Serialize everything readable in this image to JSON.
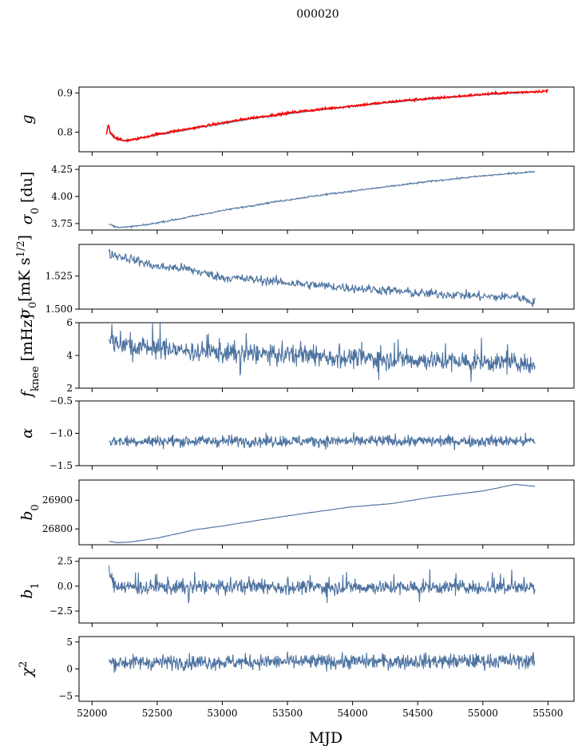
{
  "figure": {
    "title": "000020",
    "xlabel": "MJD"
  },
  "colors": {
    "series": "#4c72a0",
    "overlay": "#ff0000",
    "axes": "#000000"
  },
  "chart_data": {
    "type": "line",
    "shared_x": {
      "range": [
        51900,
        55700
      ],
      "ticks": [
        52000,
        52500,
        53000,
        53500,
        54000,
        54500,
        55000,
        55500
      ]
    },
    "data_x_range": [
      52130,
      55400
    ],
    "panels": [
      {
        "id": "g",
        "ylabel_main": "g",
        "ylabel_sub": "",
        "ylim": [
          0.75,
          0.915
        ],
        "yticks": [
          0.8,
          0.9
        ],
        "ytick_labels": [
          "0.8",
          "0.9"
        ],
        "series": [
          {
            "color": "#4c72a0",
            "kind": "trend",
            "noise": 0.0008,
            "points": [
              [
                52130,
                0.8
              ],
              [
                52170,
                0.785
              ],
              [
                52230,
                0.778
              ],
              [
                52300,
                0.78
              ],
              [
                52500,
                0.793
              ],
              [
                52800,
                0.81
              ],
              [
                53200,
                0.833
              ],
              [
                53600,
                0.851
              ],
              [
                54000,
                0.866
              ],
              [
                54400,
                0.879
              ],
              [
                54800,
                0.89
              ],
              [
                55100,
                0.897
              ],
              [
                55400,
                0.902
              ]
            ]
          },
          {
            "color": "#ff0000",
            "kind": "trend",
            "noise": 0.0015,
            "points": [
              [
                52110,
                0.795
              ],
              [
                52125,
                0.82
              ],
              [
                52140,
                0.8
              ],
              [
                52180,
                0.786
              ],
              [
                52240,
                0.778
              ],
              [
                52320,
                0.781
              ],
              [
                52500,
                0.795
              ],
              [
                52800,
                0.812
              ],
              [
                53200,
                0.835
              ],
              [
                53600,
                0.853
              ],
              [
                54000,
                0.867
              ],
              [
                54400,
                0.881
              ],
              [
                54800,
                0.891
              ],
              [
                55100,
                0.899
              ],
              [
                55500,
                0.905
              ]
            ]
          }
        ]
      },
      {
        "id": "sigma0_du",
        "ylabel_main": "σ",
        "ylabel_sub": "0",
        "ylabel_unit": " [du]",
        "ylim": [
          3.69,
          4.28
        ],
        "yticks": [
          3.75,
          4.0,
          4.25
        ],
        "ytick_labels": [
          "3.75",
          "4.00",
          "4.25"
        ],
        "series": [
          {
            "color": "#4c72a0",
            "kind": "trend",
            "noise": 0.004,
            "points": [
              [
                52130,
                3.745
              ],
              [
                52180,
                3.72
              ],
              [
                52250,
                3.715
              ],
              [
                52400,
                3.735
              ],
              [
                52700,
                3.8
              ],
              [
                53000,
                3.87
              ],
              [
                53400,
                3.95
              ],
              [
                53800,
                4.02
              ],
              [
                54200,
                4.08
              ],
              [
                54600,
                4.14
              ],
              [
                55000,
                4.19
              ],
              [
                55400,
                4.23
              ]
            ]
          }
        ]
      },
      {
        "id": "sigma0_mk",
        "ylabel_main": "σ",
        "ylabel_sub": "0",
        "ylabel_unit": "[mK s",
        "ylabel_sup": "1/2",
        "ylabel_end": "]",
        "ylim": [
          1.5,
          1.549
        ],
        "yticks": [
          1.5,
          1.525
        ],
        "ytick_labels": [
          "1.500",
          "1.525"
        ],
        "series": [
          {
            "color": "#4c72a0",
            "kind": "trend",
            "noise": 0.0018,
            "points": [
              [
                52130,
                1.542
              ],
              [
                52300,
                1.538
              ],
              [
                52500,
                1.532
              ],
              [
                52700,
                1.531
              ],
              [
                53000,
                1.524
              ],
              [
                53300,
                1.522
              ],
              [
                53600,
                1.519
              ],
              [
                54000,
                1.516
              ],
              [
                54300,
                1.514
              ],
              [
                54500,
                1.512
              ],
              [
                54800,
                1.511
              ],
              [
                55100,
                1.509
              ],
              [
                55250,
                1.51
              ],
              [
                55400,
                1.505
              ]
            ]
          }
        ]
      },
      {
        "id": "fknee",
        "ylabel_main": "f",
        "ylabel_sub": "knee",
        "ylabel_unit": " [mHz]",
        "ylim": [
          2,
          6
        ],
        "yticks": [
          2,
          4,
          6
        ],
        "ytick_labels": [
          "2",
          "4",
          "6"
        ],
        "series": [
          {
            "color": "#4c72a0",
            "kind": "spiky",
            "noise": 0.3,
            "spike": 0.9,
            "points": [
              [
                52130,
                4.9
              ],
              [
                52300,
                4.6
              ],
              [
                52700,
                4.3
              ],
              [
                53200,
                4.1
              ],
              [
                53800,
                3.9
              ],
              [
                54400,
                3.75
              ],
              [
                55000,
                3.6
              ],
              [
                55400,
                3.5
              ]
            ]
          }
        ]
      },
      {
        "id": "alpha",
        "ylabel_main": "α",
        "ylabel_sub": "",
        "ylim": [
          -1.5,
          -0.5
        ],
        "yticks": [
          -1.5,
          -1.0,
          -0.5
        ],
        "ytick_labels": [
          "−1.5",
          "−1.0",
          "−0.5"
        ],
        "series": [
          {
            "color": "#4c72a0",
            "kind": "noise",
            "noise": 0.045,
            "points": [
              [
                52130,
                -1.12
              ],
              [
                55400,
                -1.12
              ]
            ]
          }
        ]
      },
      {
        "id": "b0",
        "ylabel_main": "b",
        "ylabel_sub": "0",
        "ylim": [
          26745,
          26970
        ],
        "yticks": [
          26800,
          26900
        ],
        "ytick_labels": [
          "26800",
          "26900"
        ],
        "series": [
          {
            "color": "#4c72a0",
            "kind": "trend",
            "noise": 0.4,
            "points": [
              [
                52130,
                26757
              ],
              [
                52200,
                26752
              ],
              [
                52300,
                26755
              ],
              [
                52500,
                26768
              ],
              [
                52800,
                26798
              ],
              [
                53000,
                26810
              ],
              [
                53300,
                26832
              ],
              [
                53600,
                26852
              ],
              [
                54000,
                26877
              ],
              [
                54300,
                26888
              ],
              [
                54600,
                26910
              ],
              [
                55000,
                26932
              ],
              [
                55250,
                26955
              ],
              [
                55400,
                26948
              ]
            ]
          }
        ]
      },
      {
        "id": "b1",
        "ylabel_main": "b",
        "ylabel_sub": "1",
        "ylim": [
          -3.7,
          2.8
        ],
        "yticks": [
          -2.5,
          0.0,
          2.5
        ],
        "ytick_labels": [
          "−2.5",
          "0.0",
          "2.5"
        ],
        "series": [
          {
            "color": "#4c72a0",
            "kind": "spiky",
            "noise": 0.35,
            "spike": 1.1,
            "points": [
              [
                52130,
                1.8
              ],
              [
                52160,
                0.2
              ],
              [
                52300,
                -0.1
              ],
              [
                55400,
                -0.1
              ]
            ]
          }
        ]
      },
      {
        "id": "chi2",
        "ylabel_main": "χ",
        "ylabel_sub": "",
        "ylabel_sup": "2",
        "ylim": [
          -6,
          6
        ],
        "yticks": [
          -5,
          0,
          5
        ],
        "ytick_labels": [
          "−5",
          "0",
          "5"
        ],
        "series": [
          {
            "color": "#4c72a0",
            "kind": "noise",
            "noise": 0.7,
            "points": [
              [
                52130,
                1.2
              ],
              [
                55400,
                1.5
              ]
            ]
          }
        ]
      }
    ]
  }
}
